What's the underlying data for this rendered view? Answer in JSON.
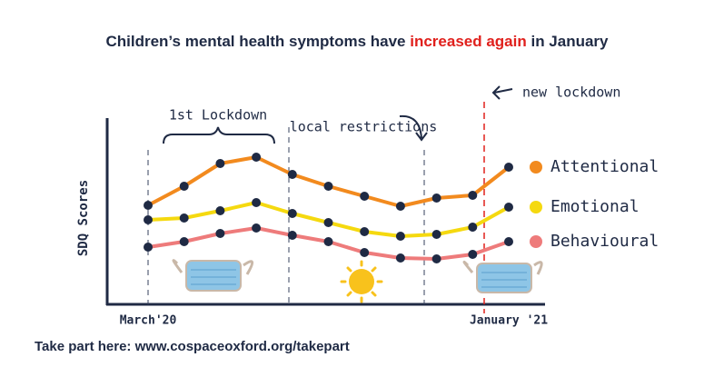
{
  "chart_data": {
    "type": "line",
    "title_parts": [
      "Children’s mental health symptoms have ",
      "increased again",
      " in January"
    ],
    "y_label": "SDQ Scores",
    "categories": [
      "March'20",
      null,
      null,
      null,
      null,
      null,
      null,
      null,
      null,
      null,
      "January '21"
    ],
    "series": [
      {
        "name": "Attentional",
        "color": "#f28a1e",
        "values": [
          5.45,
          6.5,
          7.75,
          8.1,
          7.15,
          6.5,
          5.95,
          5.4,
          5.85,
          6,
          7.55
        ]
      },
      {
        "name": "Emotional",
        "color": "#f5d90f",
        "values": [
          4.65,
          4.75,
          5.15,
          5.6,
          5,
          4.5,
          4,
          3.75,
          3.85,
          4.25,
          5.35
        ]
      },
      {
        "name": "Behavioural",
        "color": "#ee7b7b",
        "values": [
          3.15,
          3.45,
          3.9,
          4.2,
          3.8,
          3.45,
          2.85,
          2.55,
          2.5,
          2.75,
          3.45
        ]
      }
    ],
    "ylim": [
      0,
      10
    ],
    "annotations": [
      "1st Lockdown",
      "local restrictions",
      "new lockdown"
    ],
    "footer": "Take part here: www.cospaceoxford.org/takepart"
  }
}
